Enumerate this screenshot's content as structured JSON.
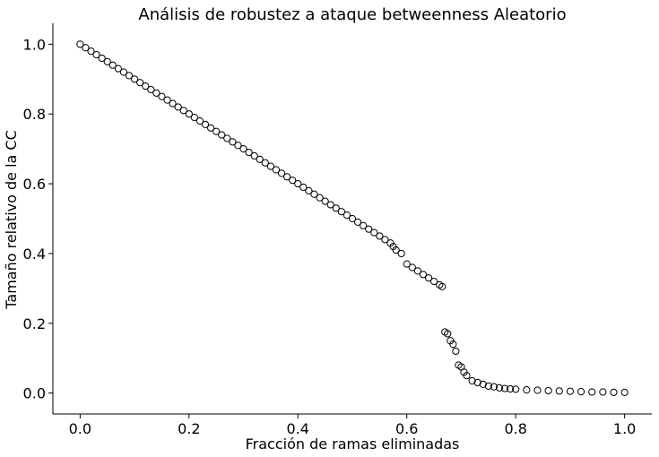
{
  "chart_data": {
    "type": "scatter",
    "title": "Análisis de robustez a ataque betweenness Aleatorio",
    "xlabel": "Fracción de ramas eliminadas",
    "ylabel": "Tamaño relativo de la CC",
    "xlim": [
      -0.05,
      1.05
    ],
    "ylim": [
      -0.06,
      1.06
    ],
    "xticks": [
      0.0,
      0.2,
      0.4,
      0.6,
      0.8,
      1.0
    ],
    "xtick_labels": [
      "0.0",
      "0.2",
      "0.4",
      "0.6",
      "0.8",
      "1.0"
    ],
    "yticks": [
      0.0,
      0.2,
      0.4,
      0.6,
      0.8,
      1.0
    ],
    "ytick_labels": [
      "0.0",
      "0.2",
      "0.4",
      "0.6",
      "0.8",
      "1.0"
    ],
    "grid": false,
    "marker": "hollow circle",
    "color": "#000000",
    "series": [
      {
        "x": [
          0.0,
          0.01,
          0.02,
          0.03,
          0.04,
          0.05,
          0.06,
          0.07,
          0.08,
          0.09,
          0.1,
          0.11,
          0.12,
          0.13,
          0.14,
          0.15,
          0.16,
          0.17,
          0.18,
          0.19,
          0.2,
          0.21,
          0.22,
          0.23,
          0.24,
          0.25,
          0.26,
          0.27,
          0.28,
          0.29,
          0.3,
          0.31,
          0.32,
          0.33,
          0.34,
          0.35,
          0.36,
          0.37,
          0.38,
          0.39,
          0.4,
          0.41,
          0.42,
          0.43,
          0.44,
          0.45,
          0.46,
          0.47,
          0.48,
          0.49,
          0.5,
          0.51,
          0.52,
          0.53,
          0.54,
          0.55,
          0.56,
          0.57,
          0.575,
          0.58,
          0.59,
          0.6,
          0.61,
          0.62,
          0.63,
          0.64,
          0.65,
          0.66,
          0.665,
          0.67,
          0.675,
          0.68,
          0.685,
          0.69,
          0.695,
          0.7,
          0.705,
          0.71,
          0.72,
          0.73,
          0.74,
          0.75,
          0.76,
          0.77,
          0.78,
          0.79,
          0.8,
          0.82,
          0.84,
          0.86,
          0.88,
          0.9,
          0.92,
          0.94,
          0.96,
          0.98,
          1.0
        ],
        "y": [
          1.0,
          0.99,
          0.98,
          0.97,
          0.96,
          0.95,
          0.94,
          0.93,
          0.92,
          0.91,
          0.9,
          0.89,
          0.88,
          0.87,
          0.86,
          0.85,
          0.84,
          0.83,
          0.82,
          0.81,
          0.8,
          0.79,
          0.78,
          0.77,
          0.76,
          0.75,
          0.74,
          0.73,
          0.72,
          0.71,
          0.7,
          0.69,
          0.68,
          0.67,
          0.66,
          0.65,
          0.64,
          0.63,
          0.62,
          0.61,
          0.6,
          0.59,
          0.58,
          0.57,
          0.56,
          0.55,
          0.54,
          0.53,
          0.52,
          0.51,
          0.5,
          0.49,
          0.48,
          0.47,
          0.46,
          0.45,
          0.44,
          0.43,
          0.42,
          0.41,
          0.4,
          0.37,
          0.36,
          0.35,
          0.34,
          0.33,
          0.32,
          0.31,
          0.305,
          0.175,
          0.17,
          0.15,
          0.14,
          0.12,
          0.08,
          0.075,
          0.06,
          0.05,
          0.035,
          0.03,
          0.025,
          0.02,
          0.018,
          0.015,
          0.013,
          0.012,
          0.011,
          0.009,
          0.008,
          0.007,
          0.006,
          0.005,
          0.004,
          0.003,
          0.003,
          0.002,
          0.002
        ]
      }
    ]
  }
}
